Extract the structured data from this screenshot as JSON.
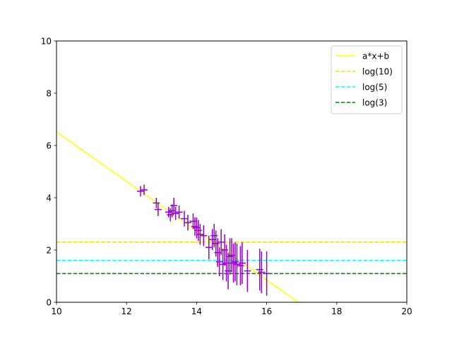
{
  "chart_data": {
    "type": "scatter",
    "xlim": [
      10,
      20
    ],
    "ylim": [
      0,
      10
    ],
    "x_ticks": [
      "10",
      "12",
      "14",
      "16",
      "18",
      "20"
    ],
    "y_ticks": [
      "0",
      "2",
      "4",
      "6",
      "8",
      "10"
    ],
    "grid": false,
    "legend_position": "top-right",
    "points": {
      "color": "#9400D3",
      "x": [
        12.4,
        12.5,
        12.85,
        12.9,
        13.2,
        13.25,
        13.3,
        13.35,
        13.4,
        13.5,
        13.65,
        13.75,
        13.9,
        13.95,
        14.0,
        14.05,
        14.1,
        14.2,
        14.35,
        14.45,
        14.5,
        14.55,
        14.6,
        14.65,
        14.7,
        14.75,
        14.8,
        14.85,
        14.9,
        14.95,
        15.0,
        15.05,
        15.1,
        15.15,
        15.25,
        15.3,
        15.45,
        15.8,
        15.85,
        16.0
      ],
      "y": [
        4.25,
        4.3,
        3.8,
        3.55,
        3.45,
        3.35,
        3.5,
        3.7,
        3.4,
        3.45,
        3.2,
        3.05,
        3.1,
        2.9,
        2.85,
        2.75,
        2.6,
        2.55,
        2.1,
        2.4,
        2.55,
        2.25,
        1.9,
        1.55,
        2.3,
        1.45,
        2.0,
        1.5,
        1.2,
        1.75,
        1.8,
        1.5,
        1.55,
        1.45,
        1.4,
        1.5,
        1.2,
        1.25,
        1.15,
        1.1
      ],
      "xerr": [
        0.1,
        0.1,
        0.1,
        0.1,
        0.1,
        0.1,
        0.1,
        0.1,
        0.1,
        0.1,
        0.1,
        0.1,
        0.1,
        0.1,
        0.1,
        0.1,
        0.1,
        0.1,
        0.1,
        0.1,
        0.1,
        0.1,
        0.1,
        0.1,
        0.1,
        0.1,
        0.1,
        0.1,
        0.1,
        0.1,
        0.1,
        0.1,
        0.1,
        0.1,
        0.1,
        0.1,
        0.1,
        0.1,
        0.1,
        0.1
      ],
      "yerr": [
        0.2,
        0.2,
        0.2,
        0.25,
        0.2,
        0.25,
        0.25,
        0.3,
        0.25,
        0.25,
        0.3,
        0.3,
        0.3,
        0.35,
        0.4,
        0.4,
        0.4,
        0.4,
        0.45,
        0.4,
        0.45,
        0.5,
        0.55,
        0.55,
        0.5,
        0.6,
        0.6,
        0.7,
        0.7,
        0.7,
        0.65,
        0.75,
        0.75,
        0.8,
        0.75,
        0.8,
        0.8,
        0.8,
        0.8,
        0.85
      ]
    },
    "series": [
      {
        "name": "a*x+b",
        "kind": "line",
        "color": "#FFFF00",
        "x": [
          10,
          16.9
        ],
        "y": [
          6.52,
          0
        ]
      },
      {
        "name": "log(10)",
        "kind": "hline",
        "color": "#FFD700",
        "y": 2.3026
      },
      {
        "name": "log(5)",
        "kind": "hline",
        "color": "#00FFFF",
        "y": 1.6094
      },
      {
        "name": "log(3)",
        "kind": "hline",
        "color": "#008000",
        "y": 1.0986
      }
    ]
  }
}
